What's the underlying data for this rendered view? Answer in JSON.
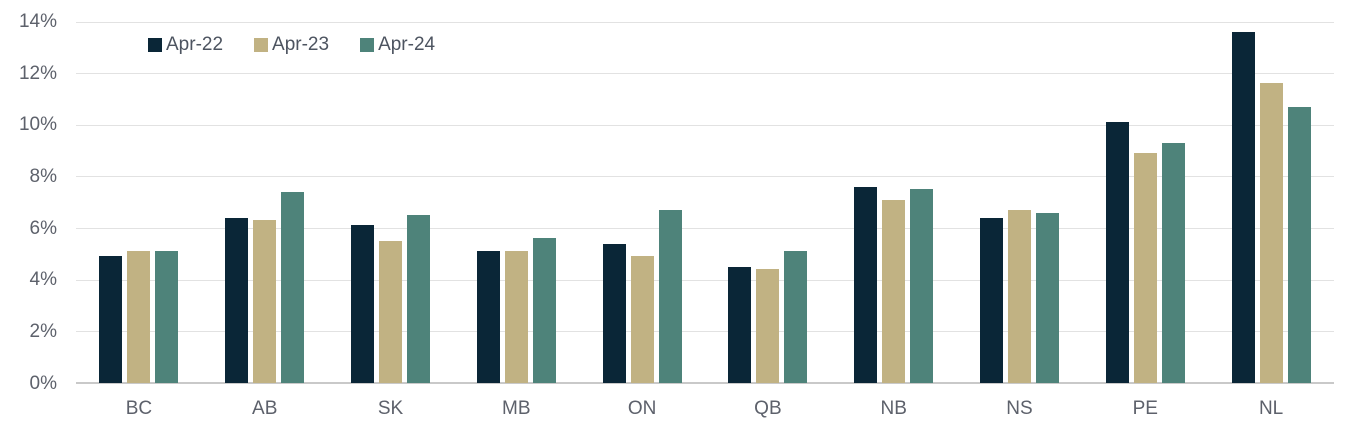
{
  "chart_data": {
    "type": "bar",
    "title": "",
    "xlabel": "",
    "ylabel": "",
    "categories": [
      "BC",
      "AB",
      "SK",
      "MB",
      "ON",
      "QB",
      "NB",
      "NS",
      "PE",
      "NL"
    ],
    "series": [
      {
        "name": "Apr-22",
        "color": "#0a2637",
        "values": [
          4.9,
          6.4,
          6.1,
          5.1,
          5.4,
          4.5,
          7.6,
          6.4,
          10.1,
          13.6
        ]
      },
      {
        "name": "Apr-23",
        "color": "#c1b283",
        "values": [
          5.1,
          6.3,
          5.5,
          5.1,
          4.9,
          4.4,
          7.1,
          6.7,
          8.9,
          11.6
        ]
      },
      {
        "name": "Apr-24",
        "color": "#4e837a",
        "values": [
          5.1,
          7.4,
          6.5,
          5.6,
          6.7,
          5.1,
          7.5,
          6.6,
          9.3,
          10.7
        ]
      }
    ],
    "ylim": [
      0,
      14
    ],
    "yticks": [
      0,
      2,
      4,
      6,
      8,
      10,
      12,
      14
    ],
    "ytick_labels": [
      "0%",
      "2%",
      "4%",
      "6%",
      "8%",
      "10%",
      "12%",
      "14%"
    ],
    "grid": "horizontal",
    "legend_position": "top-left-inside",
    "value_suffix": "%"
  },
  "style": {
    "grid_color": "#e2e2e2",
    "baseline_color": "#c9c9c9",
    "axis_text_color": "#5d616b",
    "legend_text_color": "#4d5460",
    "background_color": "#ffffff"
  }
}
